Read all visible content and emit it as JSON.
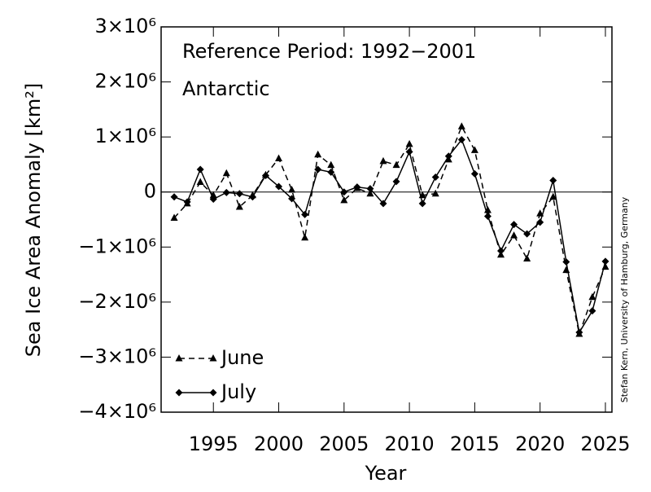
{
  "chart_data": {
    "type": "line",
    "annotations": [
      "Reference Period: 1992−2001",
      "Antarctic"
    ],
    "credit": "Stefan Kern, University of Hamburg, Germany",
    "xlabel": "Year",
    "ylabel": "Sea Ice Area Anomaly [km²]",
    "x": [
      1992,
      1993,
      1994,
      1995,
      1996,
      1997,
      1998,
      1999,
      2000,
      2001,
      2002,
      2003,
      2004,
      2005,
      2006,
      2007,
      2008,
      2009,
      2010,
      2011,
      2012,
      2013,
      2014,
      2015,
      2016,
      2017,
      2018,
      2019,
      2020,
      2021,
      2022,
      2023,
      2024,
      2025
    ],
    "series": [
      {
        "name": "June",
        "color": "#000000",
        "dash": "dashed",
        "marker": "triangle",
        "values": [
          -470000,
          -210000,
          180000,
          -60000,
          340000,
          -270000,
          -60000,
          310000,
          610000,
          40000,
          -830000,
          680000,
          490000,
          -150000,
          70000,
          -30000,
          560000,
          490000,
          870000,
          -60000,
          -30000,
          590000,
          1190000,
          760000,
          -330000,
          -1140000,
          -790000,
          -1210000,
          -390000,
          -90000,
          -1420000,
          -2580000,
          -1910000,
          -1360000
        ]
      },
      {
        "name": "July",
        "color": "#000000",
        "dash": "solid",
        "marker": "diamond",
        "values": [
          -90000,
          -180000,
          410000,
          -130000,
          -10000,
          -30000,
          -90000,
          300000,
          100000,
          -120000,
          -410000,
          410000,
          360000,
          0,
          90000,
          60000,
          -210000,
          190000,
          730000,
          -210000,
          270000,
          650000,
          950000,
          330000,
          -440000,
          -1070000,
          -590000,
          -760000,
          -550000,
          210000,
          -1270000,
          -2550000,
          -2160000,
          -1260000
        ]
      }
    ],
    "xlim": [
      1991,
      2025.5
    ],
    "xticks": [
      1995,
      2000,
      2005,
      2010,
      2015,
      2020,
      2025
    ],
    "ylim": [
      -4000000,
      3000000
    ],
    "yticks": [
      {
        "value": -4000000,
        "label": "−4×10⁶"
      },
      {
        "value": -3000000,
        "label": "−3×10⁶"
      },
      {
        "value": -2000000,
        "label": "−2×10⁶"
      },
      {
        "value": -1000000,
        "label": "−1×10⁶"
      },
      0,
      {
        "value": 1000000,
        "label": "1×10⁶"
      },
      {
        "value": 2000000,
        "label": "2×10⁶"
      },
      {
        "value": 3000000,
        "label": "3×10⁶"
      }
    ],
    "hline": 0,
    "legend": "lower left"
  }
}
